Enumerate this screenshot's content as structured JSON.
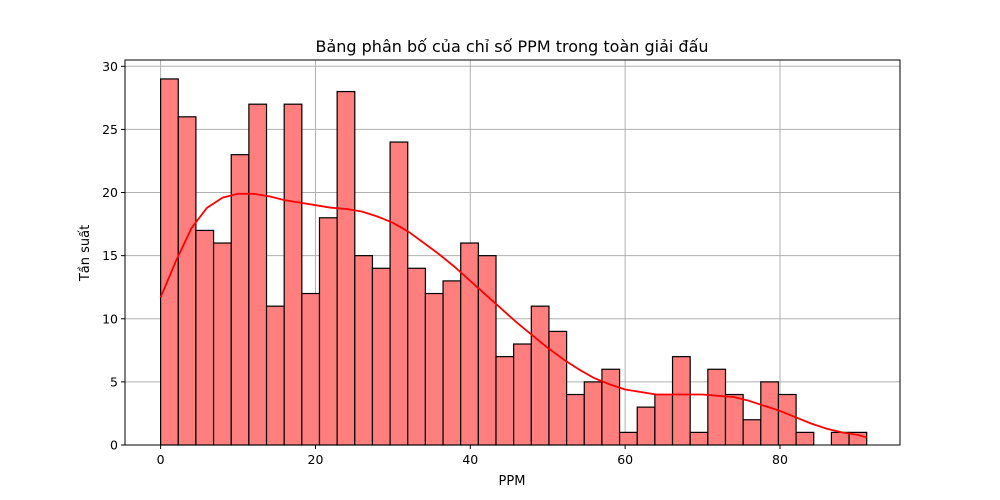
{
  "chart_data": {
    "type": "bar",
    "title": "Bảng phân bố của chỉ số PPM trong toàn giải đấu",
    "xlabel": "PPM",
    "ylabel": "Tần suất",
    "xlim": [
      -4.6,
      95.5
    ],
    "ylim": [
      0,
      30.5
    ],
    "xticks": [
      0,
      20,
      40,
      60,
      80
    ],
    "yticks": [
      0,
      5,
      10,
      15,
      20,
      25,
      30
    ],
    "grid": true,
    "bar_color": "#ff7f7f",
    "edge_color": "#000000",
    "kde_color": "#ff0000",
    "bins": {
      "start": 0,
      "width": 2.28,
      "counts": [
        29,
        26,
        17,
        16,
        23,
        27,
        11,
        27,
        12,
        18,
        28,
        15,
        14,
        24,
        14,
        12,
        13,
        16,
        15,
        7,
        8,
        11,
        9,
        4,
        5,
        6,
        1,
        3,
        4,
        7,
        1,
        6,
        4,
        2,
        5,
        4,
        1,
        0,
        1,
        1
      ]
    },
    "kde": {
      "x": [
        0,
        2,
        4,
        6,
        8,
        10,
        12,
        14,
        16,
        18,
        20,
        22,
        24,
        26,
        28,
        30,
        32,
        34,
        36,
        38,
        40,
        42,
        44,
        46,
        48,
        50,
        52,
        54,
        56,
        58,
        60,
        62,
        64,
        66,
        68,
        70,
        72,
        74,
        76,
        78,
        80,
        82,
        84,
        86,
        88,
        90,
        91.2
      ],
      "y": [
        11.7,
        14.6,
        17.2,
        18.8,
        19.6,
        19.9,
        19.9,
        19.7,
        19.4,
        19.2,
        19.0,
        18.8,
        18.7,
        18.5,
        18.1,
        17.6,
        16.9,
        16.0,
        15.1,
        14.1,
        13.0,
        11.9,
        10.8,
        9.7,
        8.7,
        7.7,
        6.8,
        6.0,
        5.3,
        4.8,
        4.4,
        4.2,
        4.0,
        4.0,
        4.0,
        4.0,
        3.9,
        3.8,
        3.5,
        3.1,
        2.7,
        2.2,
        1.7,
        1.3,
        1.0,
        0.8,
        0.6
      ]
    }
  }
}
